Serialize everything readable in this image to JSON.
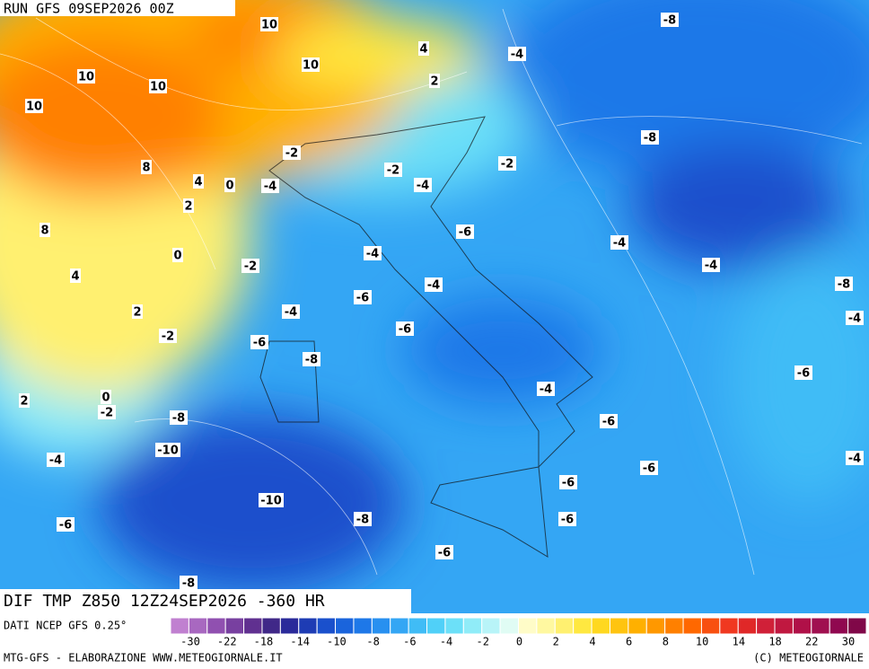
{
  "header": {
    "run": "RUN GFS 09SEP2026 00Z"
  },
  "field": {
    "title": "DIF TMP Z850 12Z24SEP2026 -360 HR",
    "source": "DATI NCEP GFS 0.25°"
  },
  "contour_labels": {
    "values": [
      10,
      -8,
      4,
      -4,
      10,
      10,
      10,
      2,
      10,
      -8,
      -2,
      -2,
      8,
      -2,
      4,
      0,
      -4,
      -4,
      2,
      8,
      -6,
      -4,
      0,
      -4,
      -2,
      -4,
      4,
      -4,
      -8,
      -6,
      -4,
      2,
      -4,
      -6,
      -2,
      -6,
      -8,
      -6,
      -4,
      0,
      2,
      -2,
      -8,
      -6,
      -10,
      -4,
      -4,
      -6,
      -6,
      -10,
      -8,
      -6,
      -6,
      -6,
      -8
    ]
  },
  "colorbar": {
    "colors": [
      "#c080d0",
      "#a868c0",
      "#9050b0",
      "#7840a0",
      "#603090",
      "#402888",
      "#2a2a9a",
      "#1e3cb4",
      "#1a50cc",
      "#1a64dc",
      "#1e78e8",
      "#2890f0",
      "#34a6f4",
      "#40bcf6",
      "#50d0f8",
      "#6ce0f8",
      "#90ecf8",
      "#b8f4f8",
      "#e0fcf4",
      "#fffcc8",
      "#fff8a0",
      "#fff070",
      "#ffe840",
      "#ffd820",
      "#ffc410",
      "#ffb000",
      "#ff9800",
      "#ff8000",
      "#ff6800",
      "#f85010",
      "#f03820",
      "#e02828",
      "#d02038",
      "#c01840",
      "#b01048",
      "#a01050",
      "#900850",
      "#800848"
    ],
    "labels": [
      -30,
      -22,
      -18,
      -14,
      -10,
      -8,
      -6,
      -4,
      -2,
      0,
      2,
      4,
      6,
      8,
      10,
      14,
      18,
      22,
      30
    ]
  },
  "footer": {
    "left": "MTG-GFS - ELABORAZIONE WWW.METEOGIORNALE.IT",
    "right": "(C) METEOGIORNALE"
  }
}
